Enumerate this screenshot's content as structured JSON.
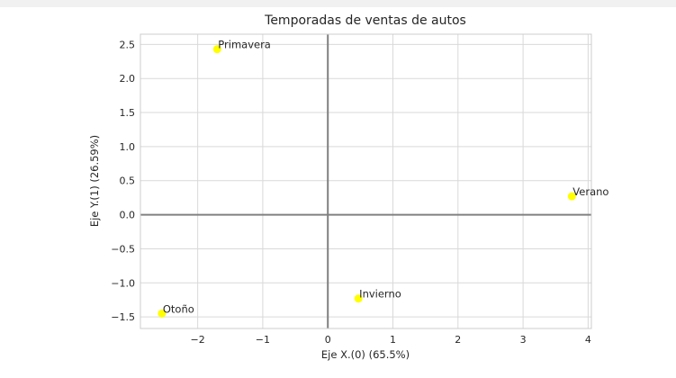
{
  "chart_data": {
    "type": "scatter",
    "title": "Temporadas de ventas de autos",
    "xlabel": "Eje X.(0) (65.5%)",
    "ylabel": "Eje Y.(1) (26.59%)",
    "xlim": [
      -2.88,
      4.05
    ],
    "ylim": [
      -1.67,
      2.65
    ],
    "xticks": [
      -2,
      -1,
      0,
      1,
      2,
      3,
      4
    ],
    "xtick_labels": [
      "−2",
      "−1",
      "0",
      "1",
      "2",
      "3",
      "4"
    ],
    "yticks": [
      -1.5,
      -1.0,
      -0.5,
      0.0,
      0.5,
      1.0,
      1.5,
      2.0,
      2.5
    ],
    "ytick_labels": [
      "−1.5",
      "−1.0",
      "−0.5",
      "0.0",
      "0.5",
      "1.0",
      "1.5",
      "2.0",
      "2.5"
    ],
    "grid": true,
    "point_color": "#ffff00",
    "points": [
      {
        "label": "Primavera",
        "x": -1.7,
        "y": 2.43
      },
      {
        "label": "Verano",
        "x": 3.75,
        "y": 0.27
      },
      {
        "label": "Invierno",
        "x": 0.47,
        "y": -1.23
      },
      {
        "label": "Otoño",
        "x": -2.55,
        "y": -1.45
      }
    ]
  }
}
